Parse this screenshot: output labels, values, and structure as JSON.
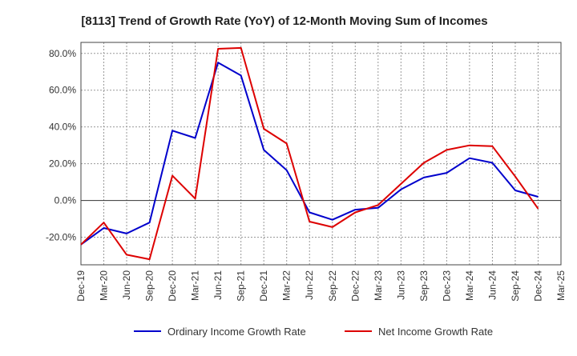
{
  "chart_data": {
    "type": "line",
    "title": "[8113]  Trend of Growth Rate (YoY) of 12-Month Moving Sum of Incomes",
    "xlabel": "",
    "ylabel": "",
    "categories": [
      "Dec-19",
      "Mar-20",
      "Jun-20",
      "Sep-20",
      "Dec-20",
      "Mar-21",
      "Jun-21",
      "Sep-21",
      "Dec-21",
      "Mar-22",
      "Jun-22",
      "Sep-22",
      "Dec-22",
      "Mar-23",
      "Jun-23",
      "Sep-23",
      "Dec-23",
      "Mar-24",
      "Jun-24",
      "Sep-24",
      "Dec-24",
      "Mar-25"
    ],
    "y_ticks": [
      80.0,
      60.0,
      40.0,
      20.0,
      0.0,
      -20.0
    ],
    "y_tick_labels": [
      "80.0%",
      "60.0%",
      "40.0%",
      "20.0%",
      "0.0%",
      "-20.0%"
    ],
    "ylim": [
      -35,
      86
    ],
    "grid": true,
    "legend_position": "bottom",
    "series": [
      {
        "name": "Ordinary Income Growth Rate",
        "color": "#0000cc",
        "values": [
          -24.0,
          -15.0,
          -18.0,
          -12.0,
          38.0,
          34.0,
          75.0,
          68.0,
          27.5,
          16.5,
          -6.5,
          -10.5,
          -5.0,
          -4.0,
          6.0,
          12.5,
          15.0,
          23.0,
          20.5,
          5.5,
          2.0,
          null
        ]
      },
      {
        "name": "Net Income Growth Rate",
        "color": "#dd0000",
        "values": [
          -24.0,
          -12.0,
          -29.5,
          -32.0,
          13.5,
          1.0,
          82.5,
          83.0,
          39.0,
          31.0,
          -11.5,
          -14.5,
          -6.5,
          -2.5,
          9.0,
          20.5,
          27.5,
          30.0,
          29.5,
          13.0,
          -4.5,
          null
        ]
      }
    ]
  }
}
